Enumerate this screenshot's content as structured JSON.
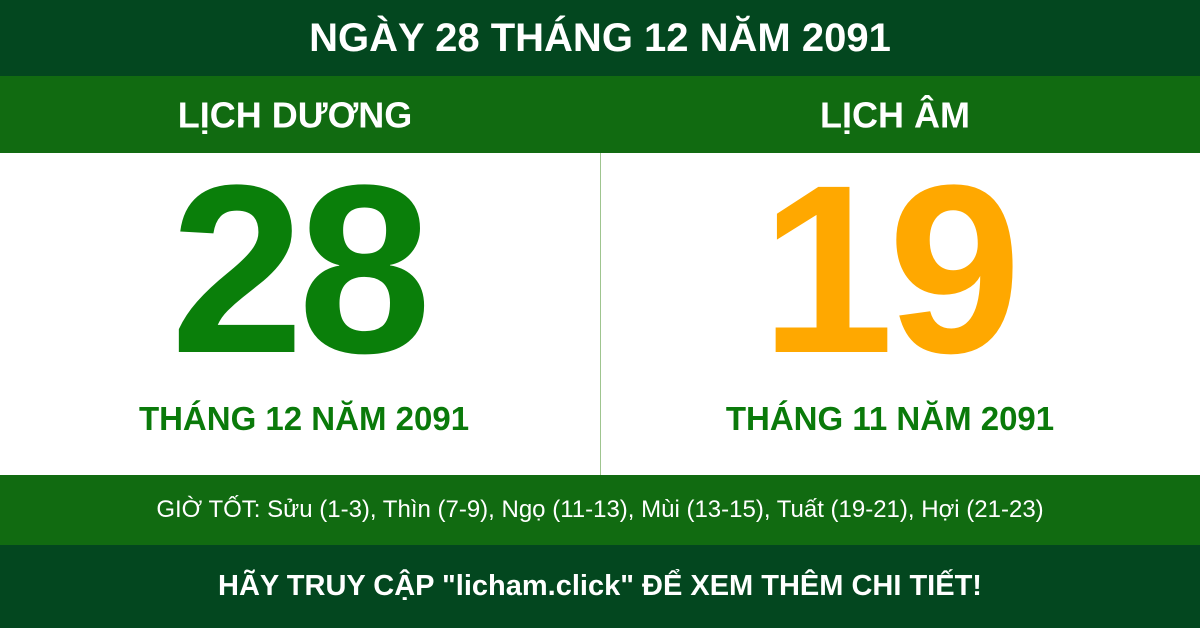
{
  "header": {
    "title": "NGÀY 28 THÁNG 12 NĂM 2091"
  },
  "solar": {
    "heading": "LỊCH DƯƠNG",
    "day": "28",
    "month_year": "THÁNG 12 NĂM 2091",
    "color": "#0a7f0a"
  },
  "lunar": {
    "heading": "LỊCH ÂM",
    "day": "19",
    "month_year": "THÁNG 11 NĂM 2091",
    "color": "#ffa800"
  },
  "good_hours": "GIỜ TỐT: Sửu (1-3), Thìn (7-9), Ngọ (11-13), Mùi (13-15), Tuất (19-21), Hợi (21-23)",
  "footer": {
    "text": "HÃY TRUY CẬP \"licham.click\" ĐỂ XEM THÊM CHI TIẾT!"
  },
  "colors": {
    "dark_green": "#03471f",
    "green": "#116b11"
  }
}
